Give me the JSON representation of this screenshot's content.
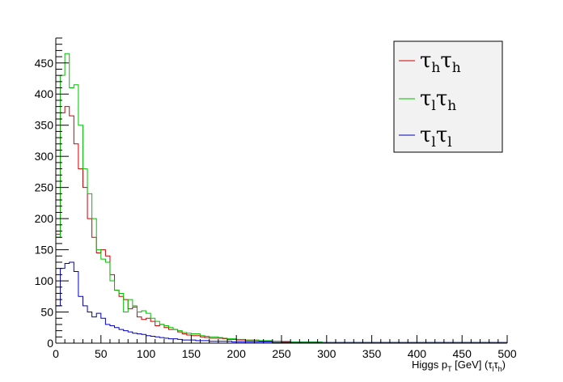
{
  "chart_data": {
    "type": "line",
    "subtype": "histogram-step",
    "title": "",
    "xlabel": {
      "main": "Higgs p",
      "main_sub": "T",
      "unit": " [GeV] (",
      "tau1": "τ",
      "tau1_sub": "l",
      "tau2": "τ",
      "tau2_sub": "h",
      "close": ")"
    },
    "ylabel": "",
    "xlim": [
      0,
      500
    ],
    "ylim": [
      0,
      490
    ],
    "x_ticks": [
      0,
      50,
      100,
      150,
      200,
      250,
      300,
      350,
      400,
      450,
      500
    ],
    "y_ticks": [
      0,
      50,
      100,
      150,
      200,
      250,
      300,
      350,
      400,
      450
    ],
    "bin_width": 5,
    "grid": false,
    "legend_position": "top-right",
    "series": [
      {
        "name": "τhτh",
        "legend": {
          "t1": "τ",
          "s1": "h",
          "t2": "τ",
          "s2": "h"
        },
        "color": "#d00000",
        "values": [
          175,
          370,
          380,
          365,
          320,
          280,
          250,
          200,
          170,
          145,
          150,
          140,
          110,
          85,
          75,
          70,
          55,
          58,
          42,
          38,
          40,
          35,
          28,
          30,
          25,
          22,
          22,
          18,
          15,
          13,
          12,
          12,
          10,
          9,
          8,
          8,
          8,
          7,
          6,
          6,
          5,
          5,
          4,
          4,
          4,
          3,
          3,
          3,
          3,
          3,
          2,
          2,
          2,
          2,
          2,
          2,
          2,
          2,
          1,
          1,
          1,
          1,
          1,
          1,
          1,
          1,
          1,
          1,
          1,
          1,
          1,
          1,
          1,
          1,
          1,
          1,
          1,
          1,
          1,
          1,
          1,
          1,
          1,
          1,
          1,
          1,
          1,
          1,
          1,
          1,
          1,
          1,
          1,
          1,
          1,
          1,
          1,
          1,
          1,
          1
        ]
      },
      {
        "name": "τlτh",
        "legend": {
          "t1": "τ",
          "s1": "l",
          "t2": "τ",
          "s2": "h"
        },
        "color": "#00c000",
        "values": [
          170,
          430,
          465,
          410,
          415,
          350,
          280,
          240,
          200,
          150,
          135,
          130,
          100,
          85,
          80,
          50,
          70,
          60,
          50,
          52,
          48,
          40,
          35,
          30,
          28,
          25,
          22,
          20,
          17,
          16,
          15,
          15,
          12,
          11,
          10,
          10,
          9,
          8,
          7,
          7,
          6,
          6,
          5,
          5,
          5,
          4,
          4,
          4,
          3,
          3,
          3,
          3,
          2,
          2,
          2,
          2,
          2,
          2,
          2,
          1,
          1,
          1,
          1,
          1,
          1,
          1,
          1,
          1,
          1,
          1,
          1,
          1,
          1,
          1,
          1,
          1,
          1,
          1,
          1,
          1,
          1,
          1,
          1,
          1,
          1,
          1,
          1,
          1,
          1,
          1,
          1,
          1,
          1,
          1,
          1,
          1,
          1,
          1,
          1,
          1
        ]
      },
      {
        "name": "τlτl",
        "legend": {
          "t1": "τ",
          "s1": "l",
          "t2": "τ",
          "s2": "l"
        },
        "color": "#0000c0",
        "values": [
          60,
          120,
          128,
          130,
          115,
          75,
          60,
          50,
          42,
          48,
          40,
          30,
          28,
          25,
          22,
          20,
          18,
          16,
          15,
          14,
          12,
          11,
          10,
          9,
          8,
          7,
          7,
          6,
          5,
          5,
          5,
          4,
          4,
          4,
          3,
          3,
          3,
          3,
          3,
          2,
          2,
          2,
          2,
          2,
          2,
          2,
          2,
          2,
          1,
          1,
          1,
          1,
          1,
          1,
          1,
          1,
          1,
          1,
          1,
          1,
          1,
          1,
          1,
          1,
          1,
          1,
          1,
          1,
          1,
          1,
          1,
          1,
          1,
          1,
          1,
          1,
          1,
          1,
          1,
          1,
          1,
          1,
          1,
          1,
          1,
          1,
          1,
          1,
          1,
          1,
          1,
          1,
          1,
          1,
          1,
          1,
          1,
          1,
          1,
          1
        ]
      }
    ]
  }
}
